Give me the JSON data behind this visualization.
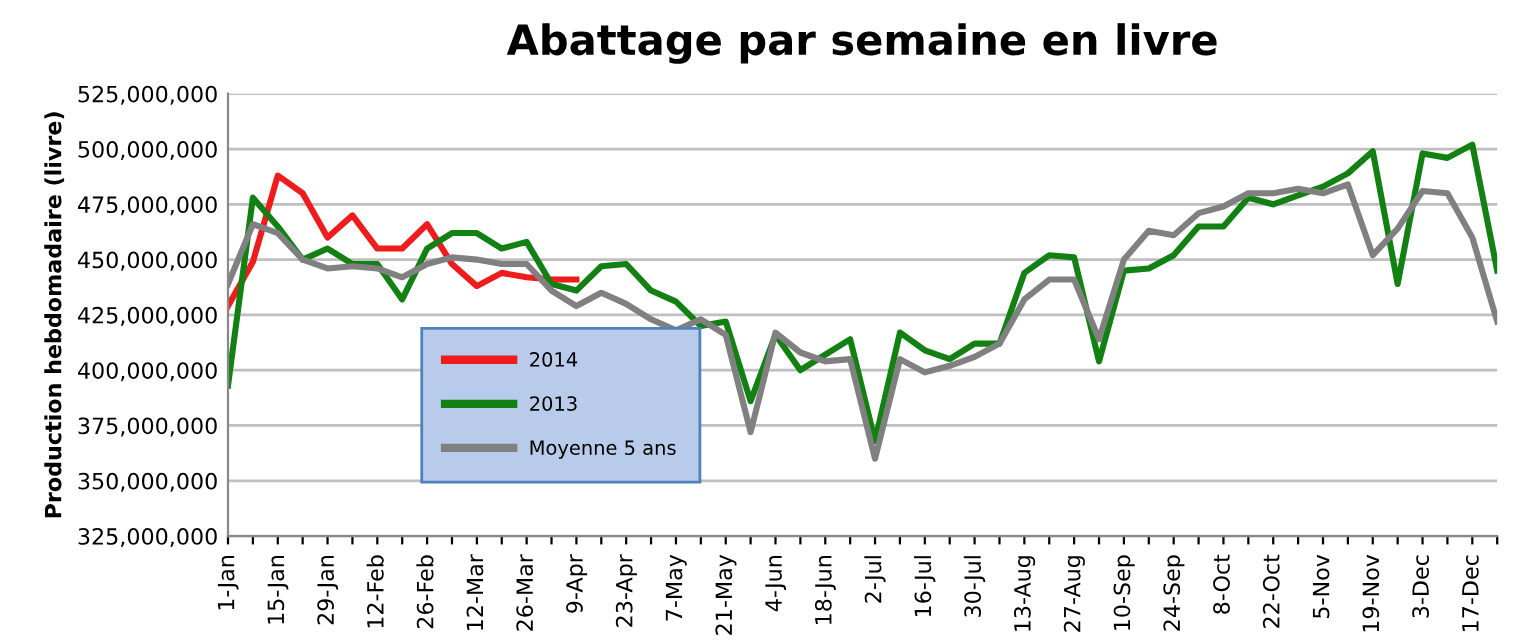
{
  "chart_data": {
    "type": "line",
    "title": "Abattage par semaine en livre",
    "ylabel": "Production hebdomadaire (livre)",
    "categories": [
      "1-Jan",
      null,
      "15-Jan",
      null,
      "29-Jan",
      null,
      "12-Feb",
      null,
      "26-Feb",
      null,
      "12-Mar",
      null,
      "26-Mar",
      null,
      "9-Apr",
      null,
      "23-Apr",
      null,
      "7-May",
      null,
      "21-May",
      null,
      "4-Jun",
      null,
      "18-Jun",
      null,
      "2-Jul",
      null,
      "16-Jul",
      null,
      "30-Jul",
      null,
      "13-Aug",
      null,
      "27-Aug",
      null,
      "10-Sep",
      null,
      "24-Sep",
      null,
      "8-Oct",
      null,
      "22-Oct",
      null,
      "5-Nov",
      null,
      "19-Nov",
      null,
      "3-Dec",
      null,
      "17-Dec",
      null
    ],
    "series": [
      {
        "name": "2014",
        "color": "#ee1c1c",
        "values": [
          429000000,
          449000000,
          488000000,
          480000000,
          460000000,
          470000000,
          455000000,
          455000000,
          466000000,
          448000000,
          438000000,
          444000000,
          442000000,
          441000000,
          441000000,
          null,
          null,
          null,
          null,
          null,
          null,
          null,
          null,
          null,
          null,
          null,
          null,
          null,
          null,
          null,
          null,
          null,
          null,
          null,
          null,
          null,
          null,
          null,
          null,
          null,
          null,
          null,
          null,
          null,
          null,
          null,
          null,
          null,
          null,
          null,
          null,
          null
        ]
      },
      {
        "name": "2013",
        "color": "#128012",
        "values": [
          393000000,
          478000000,
          465000000,
          450000000,
          455000000,
          448000000,
          448000000,
          432000000,
          455000000,
          462000000,
          462000000,
          455000000,
          458000000,
          439000000,
          436000000,
          447000000,
          448000000,
          436000000,
          431000000,
          420000000,
          422000000,
          386000000,
          416000000,
          400000000,
          407000000,
          414000000,
          368000000,
          417000000,
          409000000,
          405000000,
          412000000,
          412000000,
          444000000,
          452000000,
          451000000,
          404000000,
          445000000,
          446000000,
          452000000,
          465000000,
          465000000,
          478000000,
          475000000,
          479000000,
          483000000,
          489000000,
          499000000,
          439000000,
          498000000,
          496000000,
          502000000,
          445000000
        ]
      },
      {
        "name": "Moyenne 5 ans",
        "color": "#808080",
        "values": [
          439000000,
          466000000,
          462000000,
          450000000,
          446000000,
          447000000,
          446000000,
          442000000,
          448000000,
          451000000,
          450000000,
          448000000,
          448000000,
          436000000,
          429000000,
          435000000,
          430000000,
          423000000,
          418000000,
          423000000,
          416000000,
          372000000,
          417000000,
          408000000,
          404000000,
          405000000,
          360000000,
          405000000,
          399000000,
          402000000,
          406000000,
          412000000,
          432000000,
          441000000,
          441000000,
          414000000,
          450000000,
          463000000,
          461000000,
          471000000,
          474000000,
          480000000,
          480000000,
          482000000,
          480000000,
          484000000,
          452000000,
          464000000,
          481000000,
          480000000,
          460000000,
          422000000
        ]
      }
    ],
    "ylim": [
      325000000,
      525000000
    ],
    "yticks": [
      {
        "value": 325000000,
        "label": "325,000,000"
      },
      {
        "value": 350000000,
        "label": "350,000,000"
      },
      {
        "value": 375000000,
        "label": "375,000,000"
      },
      {
        "value": 400000000,
        "label": "400,000,000"
      },
      {
        "value": 425000000,
        "label": "425,000,000"
      },
      {
        "value": 450000000,
        "label": "450,000,000"
      },
      {
        "value": 475000000,
        "label": "475,000,000"
      },
      {
        "value": 500000000,
        "label": "500,000,000"
      },
      {
        "value": 525000000,
        "label": "525,000,000"
      }
    ],
    "grid": "y",
    "legend": "bottom left",
    "marker": "none",
    "line_style": "solid"
  }
}
